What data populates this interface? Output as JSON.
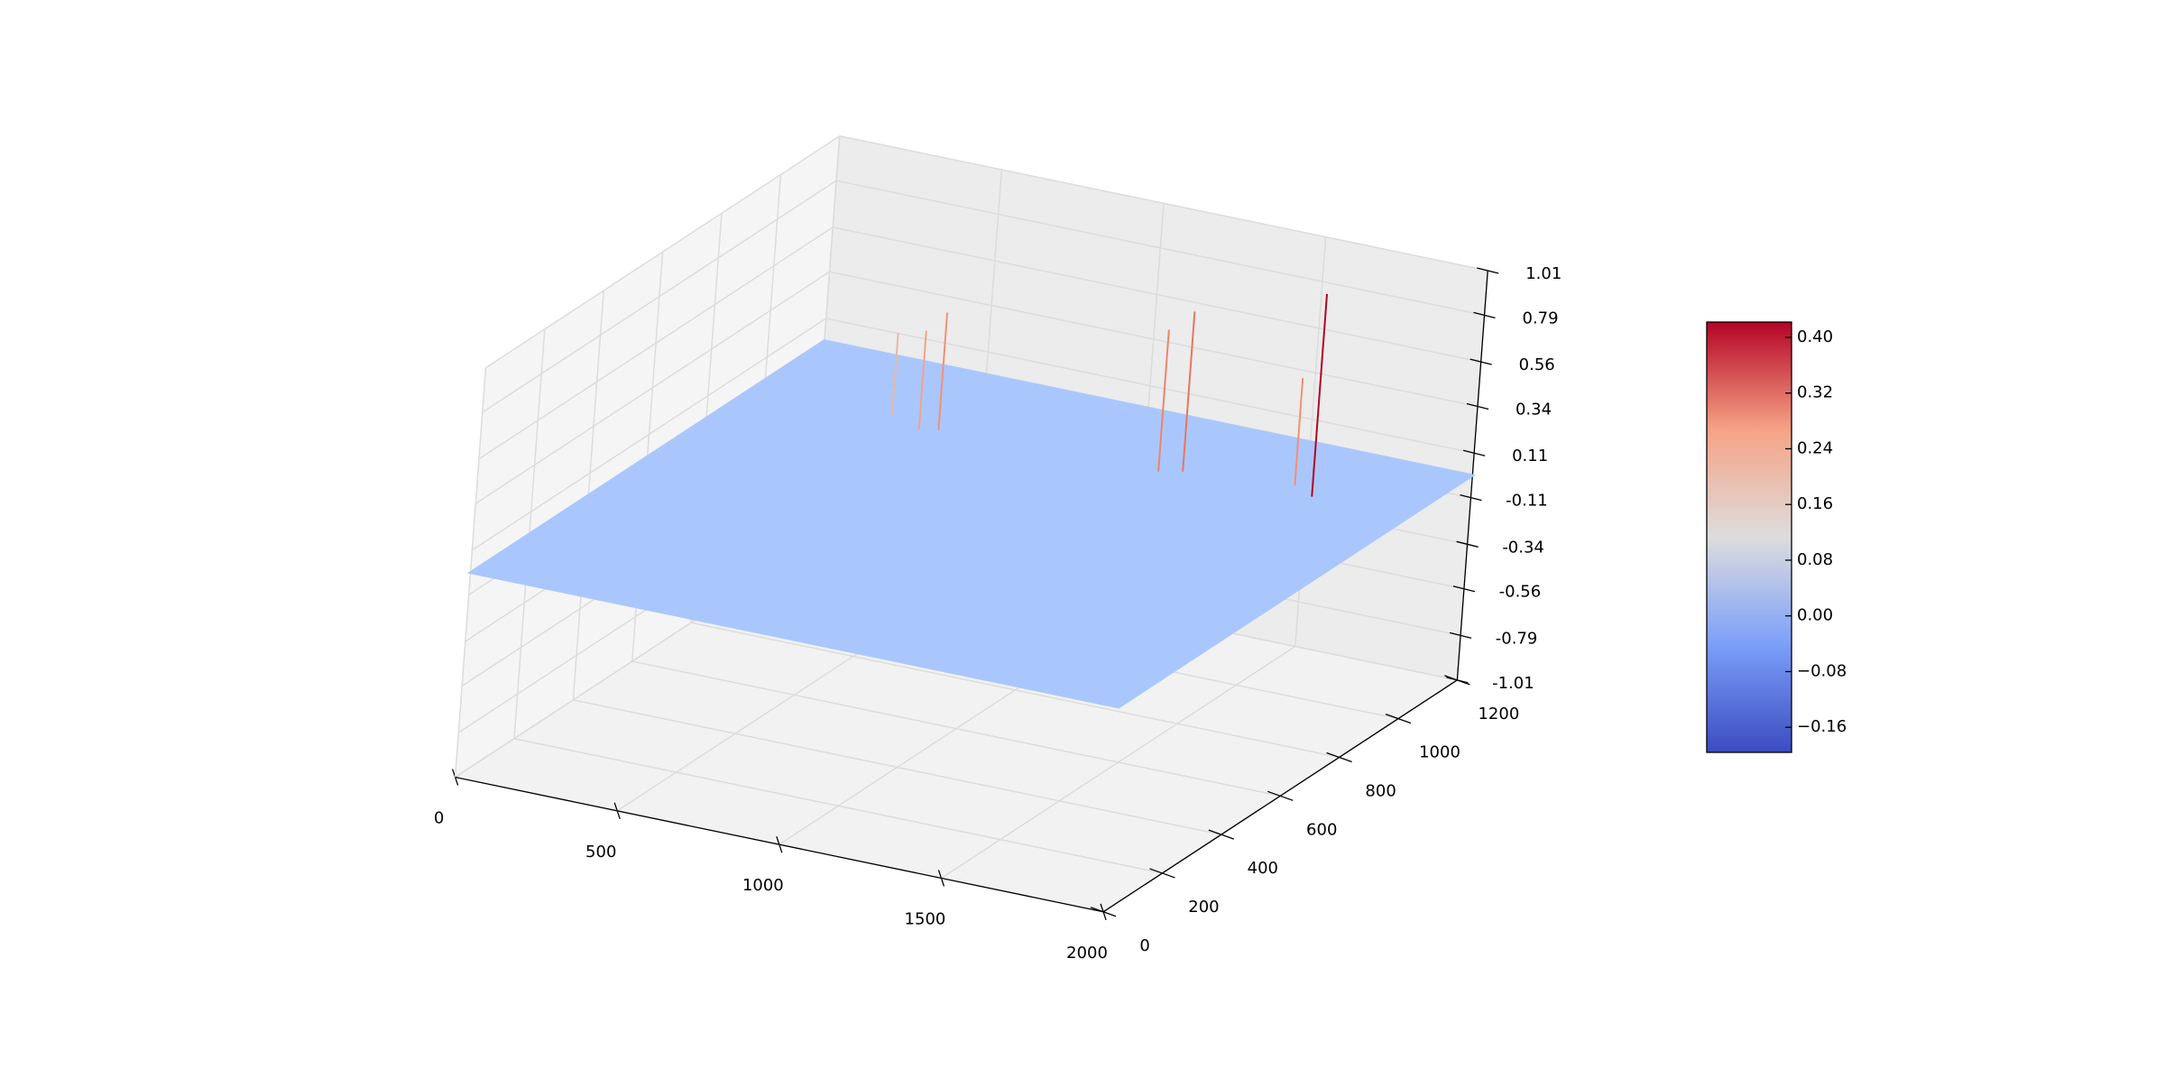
{
  "chart_data": {
    "type": "surface3d",
    "xlim": [
      0,
      2000
    ],
    "xticks": [
      0,
      500,
      1000,
      1500,
      2000
    ],
    "ylim": [
      0,
      1200
    ],
    "yticks": [
      0,
      200,
      400,
      600,
      800,
      1000,
      1200
    ],
    "zlim": [
      -1.01,
      1.01
    ],
    "zticks": [
      -1.01,
      -0.79,
      -0.56,
      -0.34,
      -0.11,
      0.11,
      0.34,
      0.56,
      0.79,
      1.01
    ],
    "surface": {
      "z": 0,
      "color": "#aac7fd"
    },
    "peaks": [
      {
        "x": 428,
        "y": 959,
        "z": 0.41,
        "color": "#e8b8a4"
      },
      {
        "x": 541,
        "y": 926,
        "z": 0.49,
        "color": "#f2a486"
      },
      {
        "x": 587,
        "y": 942,
        "z": 0.58,
        "color": "#f29072"
      },
      {
        "x": 1251,
        "y": 958,
        "z": 0.7,
        "color": "#ee8468"
      },
      {
        "x": 1308,
        "y": 978,
        "z": 0.79,
        "color": "#e8765c"
      },
      {
        "x": 1620,
        "y": 1015,
        "z": 0.53,
        "color": "#f29072"
      },
      {
        "x": 1700,
        "y": 985,
        "z": 1.0,
        "color": "#b40426"
      }
    ],
    "colorbar": {
      "lim": [
        -0.196,
        0.422
      ],
      "ticks": [
        {
          "value": 0.4,
          "label": "0.40"
        },
        0.32,
        0.24,
        0.16,
        0.08,
        {
          "value": 0,
          "label": "0.00"
        },
        {
          "value": -0.08,
          "label": "−0.08"
        },
        {
          "value": -0.16,
          "label": "−0.16"
        }
      ]
    }
  }
}
